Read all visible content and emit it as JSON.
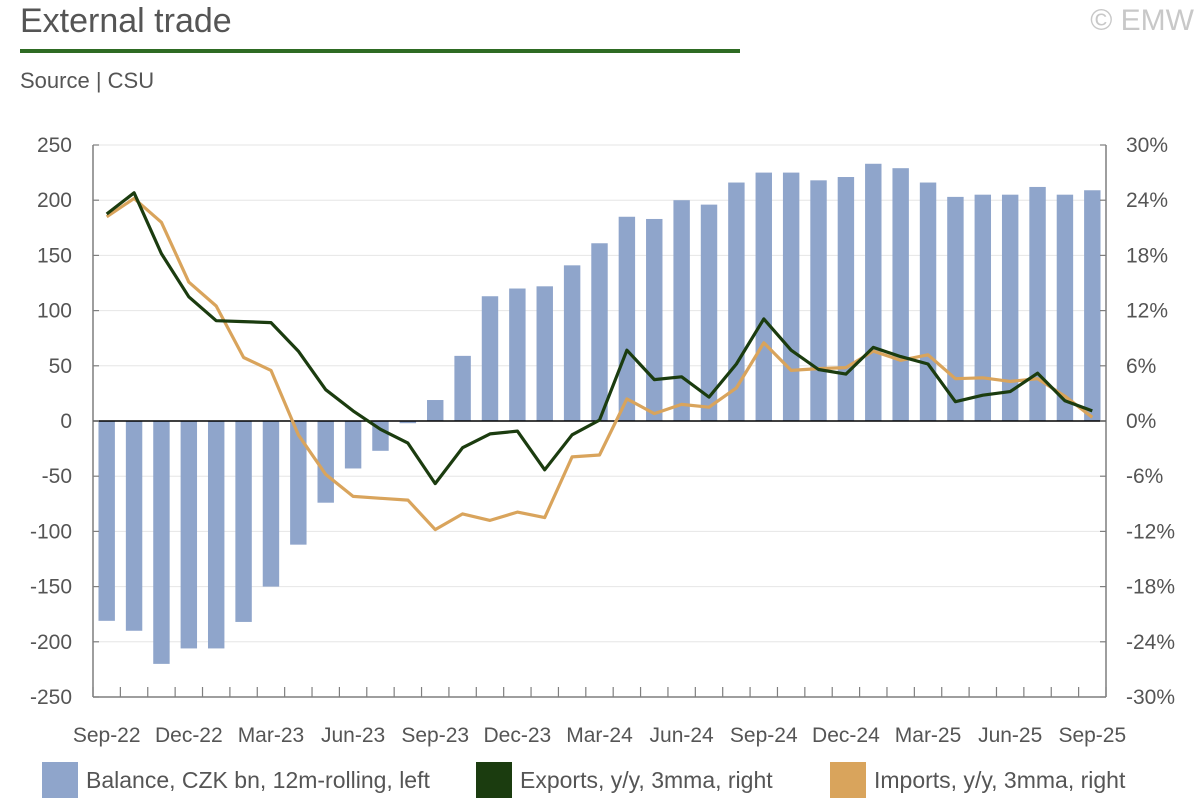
{
  "header": {
    "title": "External trade",
    "copyright": "© EMW",
    "source": "Source | CSU"
  },
  "colors": {
    "balance": "#8fa5cb",
    "exports": "#1b3c0f",
    "imports": "#d9a45c",
    "rule": "#2e6b23",
    "axis": "#7f7f7f"
  },
  "chart_data": {
    "type": "bar+line",
    "categories": [
      "Sep-22",
      "Oct-22",
      "Nov-22",
      "Dec-22",
      "Jan-23",
      "Feb-23",
      "Mar-23",
      "Apr-23",
      "May-23",
      "Jun-23",
      "Jul-23",
      "Aug-23",
      "Sep-23",
      "Oct-23",
      "Nov-23",
      "Dec-23",
      "Jan-24",
      "Feb-24",
      "Mar-24",
      "Apr-24",
      "May-24",
      "Jun-24",
      "Jul-24",
      "Aug-24",
      "Sep-24",
      "Oct-24",
      "Nov-24",
      "Dec-24",
      "Jan-25",
      "Feb-25",
      "Mar-25",
      "Apr-25",
      "May-25",
      "Jun-25",
      "Jul-25",
      "Aug-25",
      "Sep-25"
    ],
    "x_tick_labels": [
      "Sep-22",
      "Dec-22",
      "Mar-23",
      "Jun-23",
      "Sep-23",
      "Dec-23",
      "Mar-24",
      "Jun-24",
      "Sep-24",
      "Dec-24",
      "Mar-25",
      "Jun-25",
      "Sep-25"
    ],
    "left_axis": {
      "ylim": [
        -250,
        250
      ],
      "ticks": [
        250,
        200,
        150,
        100,
        50,
        0,
        -50,
        -100,
        -150,
        -200,
        -250
      ],
      "tick_labels": [
        "250",
        "200",
        "150",
        "100",
        "50",
        "0",
        "-50",
        "-100",
        "-150",
        "-200",
        "-250"
      ]
    },
    "right_axis": {
      "ylim": [
        -30,
        30
      ],
      "ticks": [
        30,
        24,
        18,
        12,
        6,
        0,
        -6,
        -12,
        -18,
        -24,
        -30
      ],
      "tick_labels": [
        "30%",
        "24%",
        "18%",
        "12%",
        "6%",
        "0%",
        "-6%",
        "-12%",
        "-18%",
        "-24%",
        "-30%"
      ]
    },
    "series": [
      {
        "name": "Balance, CZK bn, 12m-rolling, left",
        "type": "bar",
        "axis": "left",
        "values": [
          -181,
          -190,
          -220,
          -206,
          -206,
          -182,
          -150,
          -112,
          -74,
          -43,
          -27,
          -2,
          19,
          59,
          113,
          120,
          122,
          141,
          161,
          185,
          183,
          200,
          196,
          216,
          225,
          225,
          218,
          221,
          233,
          229,
          216,
          203,
          205,
          205,
          212,
          205,
          209
        ]
      },
      {
        "name": "Exports, y/y, 3mma, right",
        "type": "line",
        "axis": "right",
        "values": [
          22.5,
          24.8,
          18.2,
          13.5,
          10.9,
          10.8,
          10.7,
          7.6,
          3.4,
          1.1,
          -0.9,
          -2.4,
          -6.8,
          -2.9,
          -1.4,
          -1.1,
          -5.3,
          -1.5,
          0.1,
          7.7,
          4.5,
          4.8,
          2.6,
          6.2,
          11.1,
          7.7,
          5.6,
          5.1,
          8.0,
          7.0,
          6.2,
          2.1,
          2.8,
          3.2,
          5.2,
          2.2,
          1.1
        ]
      },
      {
        "name": "Imports, y/y, 3mma, right",
        "type": "line",
        "axis": "right",
        "values": [
          22.2,
          24.2,
          21.6,
          15.1,
          12.5,
          6.9,
          5.5,
          -1.5,
          -5.8,
          -8.2,
          -8.4,
          -8.6,
          -11.8,
          -10.1,
          -10.8,
          -9.9,
          -10.5,
          -3.9,
          -3.7,
          2.4,
          0.8,
          1.8,
          1.5,
          3.6,
          8.5,
          5.5,
          5.7,
          5.8,
          7.6,
          6.6,
          7.2,
          4.6,
          4.7,
          4.3,
          4.6,
          2.7,
          0.4
        ]
      }
    ]
  },
  "legend": [
    {
      "label": "Balance, CZK bn, 12m-rolling, left",
      "color": "#8fa5cb"
    },
    {
      "label": "Exports, y/y, 3mma, right",
      "color": "#1b3c0f"
    },
    {
      "label": "Imports, y/y, 3mma, right",
      "color": "#d9a45c"
    }
  ]
}
